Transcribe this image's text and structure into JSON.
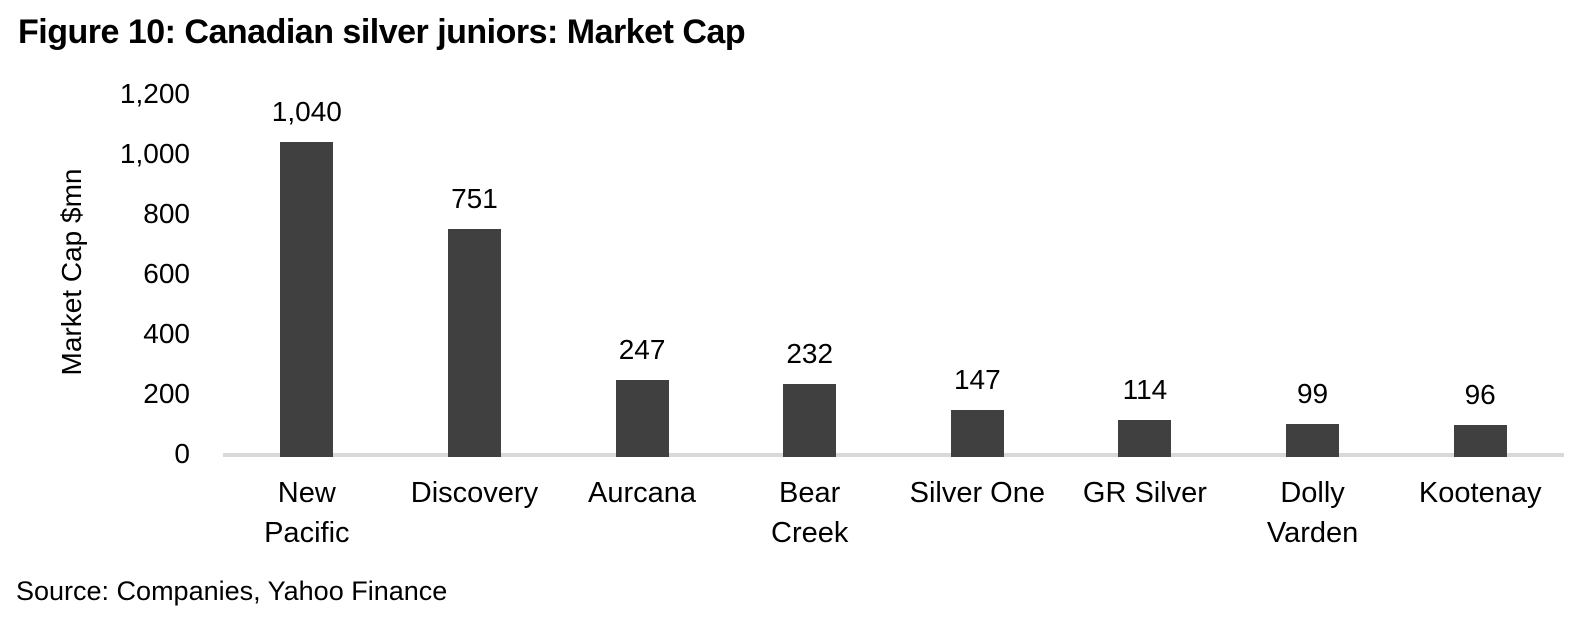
{
  "chart_data": {
    "type": "bar",
    "title": "Figure 10: Canadian silver juniors: Market Cap",
    "ylabel": "Market Cap $mn",
    "xlabel": "",
    "source": "Source: Companies, Yahoo Finance",
    "categories": [
      "New Pacific",
      "Discovery",
      "Aurcana",
      "Bear Creek",
      "Silver One",
      "GR Silver",
      "Dolly Varden",
      "Kootenay"
    ],
    "category_lines": [
      [
        "New",
        "Pacific"
      ],
      [
        "Discovery"
      ],
      [
        "Aurcana"
      ],
      [
        "Bear",
        "Creek"
      ],
      [
        "Silver One"
      ],
      [
        "GR Silver"
      ],
      [
        "Dolly",
        "Varden"
      ],
      [
        "Kootenay"
      ]
    ],
    "values": [
      1040,
      751,
      247,
      232,
      147,
      114,
      99,
      96
    ],
    "value_labels": [
      "1,040",
      "751",
      "247",
      "232",
      "147",
      "114",
      "99",
      "96"
    ],
    "ylim": [
      0,
      1200
    ],
    "yticks": [
      0,
      200,
      400,
      600,
      800,
      1000,
      1200
    ],
    "ytick_labels": [
      "0",
      "200",
      "400",
      "600",
      "800",
      "1,000",
      "1,200"
    ],
    "grid": false,
    "legend": false,
    "bar_color": "#404040",
    "axis_line_color": "#d9d9d9",
    "text_color": "#000000"
  }
}
